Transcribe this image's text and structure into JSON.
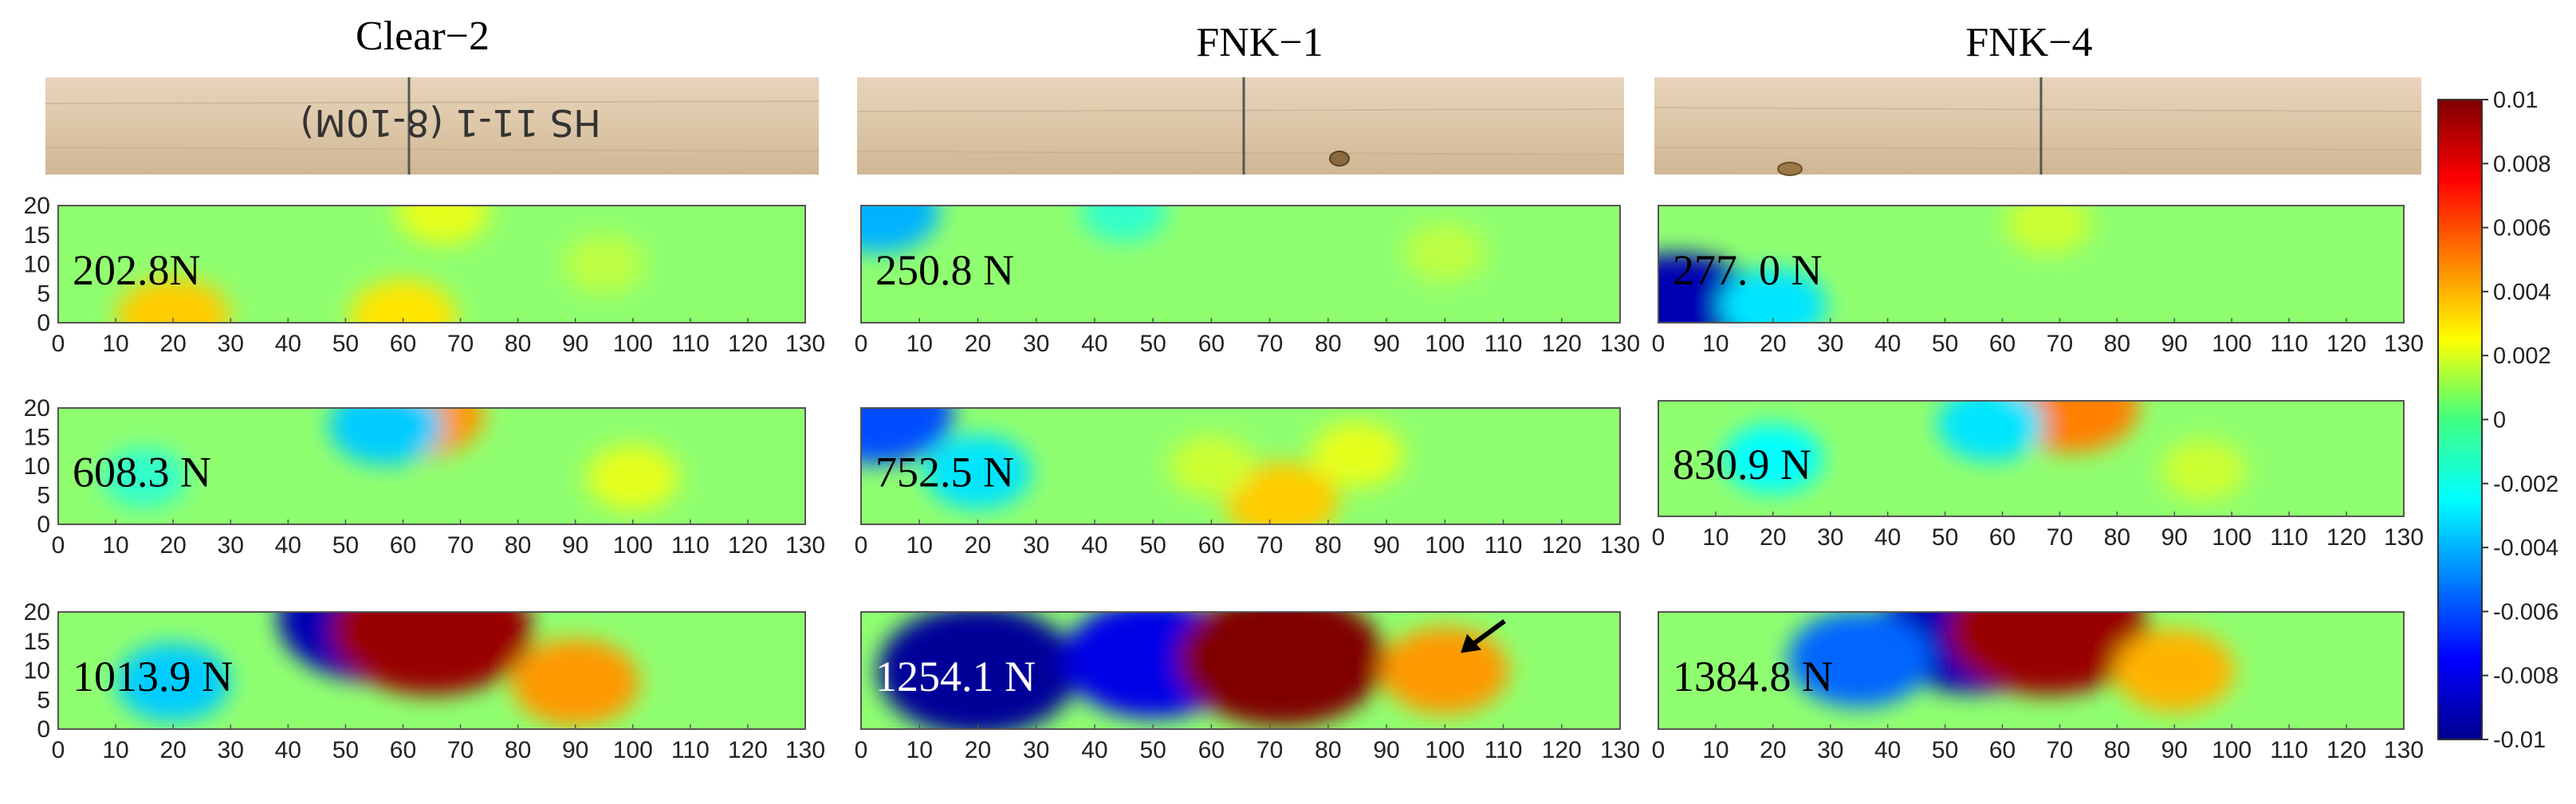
{
  "columns": [
    {
      "title": "Clear−2",
      "specimen_label": "HS 11-1 (8-10M)",
      "knot": false
    },
    {
      "title": "FNK−1",
      "specimen_label": "",
      "knot": true
    },
    {
      "title": "FNK−4",
      "specimen_label": "",
      "knot": true
    }
  ],
  "chart_data": {
    "type": "heatmap",
    "title": "",
    "xlabel": "",
    "ylabel": "",
    "x_ticks": [
      "0",
      "10",
      "20",
      "30",
      "40",
      "50",
      "60",
      "70",
      "80",
      "90",
      "100",
      "110",
      "120",
      "130"
    ],
    "y_ticks": [
      "0",
      "5",
      "10",
      "15",
      "20"
    ],
    "xlim": [
      0,
      130
    ],
    "ylim": [
      0,
      20
    ],
    "colorbar": {
      "min": -0.01,
      "max": 0.01,
      "colormap": "jet",
      "ticks": [
        "0.01",
        "0.008",
        "0.006",
        "0.004",
        "0.002",
        "0",
        "-0.002",
        "-0.004",
        "-0.006",
        "-0.008",
        "-0.01"
      ]
    },
    "panels": [
      {
        "column": "Clear−2",
        "row": 1,
        "load": "202.8N",
        "load_color": "#000000",
        "features": [
          {
            "x": 20,
            "y": 1,
            "v": 0.0035
          },
          {
            "x": 60,
            "y": 1,
            "v": 0.003
          },
          {
            "x": 67,
            "y": 19,
            "v": 0.002
          },
          {
            "x": 95,
            "y": 10,
            "v": 0.0012
          }
        ]
      },
      {
        "column": "FNK−1",
        "row": 1,
        "load": "250.8 N",
        "load_color": "#000000",
        "features": [
          {
            "x": 3,
            "y": 19,
            "v": -0.004
          },
          {
            "x": 45,
            "y": 19,
            "v": -0.0015
          },
          {
            "x": 100,
            "y": 12,
            "v": 0.0012
          }
        ]
      },
      {
        "column": "FNK−4",
        "row": 1,
        "load": "277. 0 N",
        "load_color": "#000000",
        "features": [
          {
            "x": 3,
            "y": 1,
            "v": -0.009
          },
          {
            "x": 20,
            "y": 3,
            "v": -0.003
          },
          {
            "x": 68,
            "y": 17,
            "v": 0.0015
          }
        ]
      },
      {
        "column": "Clear−2",
        "row": 2,
        "load": "608.3 N",
        "load_color": "#000000",
        "features": [
          {
            "x": 63,
            "y": 19,
            "v": 0.0045
          },
          {
            "x": 57,
            "y": 17,
            "v": -0.0035
          },
          {
            "x": 100,
            "y": 8,
            "v": 0.002
          },
          {
            "x": 15,
            "y": 8,
            "v": -0.0015
          }
        ]
      },
      {
        "column": "FNK−1",
        "row": 2,
        "load": "752.5 N",
        "load_color": "#000000",
        "features": [
          {
            "x": 3,
            "y": 19,
            "v": -0.006
          },
          {
            "x": 20,
            "y": 9,
            "v": -0.003
          },
          {
            "x": 72,
            "y": 4,
            "v": 0.0035
          },
          {
            "x": 85,
            "y": 12,
            "v": 0.002
          },
          {
            "x": 60,
            "y": 10,
            "v": 0.0015
          }
        ]
      },
      {
        "column": "FNK−4",
        "row": 2,
        "load": "830.9 N",
        "load_color": "#000000",
        "features": [
          {
            "x": 72,
            "y": 19,
            "v": 0.005
          },
          {
            "x": 58,
            "y": 16,
            "v": -0.003
          },
          {
            "x": 20,
            "y": 10,
            "v": -0.0025
          },
          {
            "x": 95,
            "y": 8,
            "v": 0.0015
          }
        ]
      },
      {
        "column": "Clear−2",
        "row": 3,
        "load": "1013.9 N",
        "load_color": "#000000",
        "features": [
          {
            "x": 55,
            "y": 19,
            "v": -0.009
          },
          {
            "x": 65,
            "y": 17,
            "v": 0.0095
          },
          {
            "x": 90,
            "y": 8,
            "v": 0.0045
          },
          {
            "x": 20,
            "y": 8,
            "v": -0.0035
          }
        ]
      },
      {
        "column": "FNK−1",
        "row": 3,
        "load": "1254.1 N",
        "load_color": "#ffffff",
        "features": [
          {
            "x": 20,
            "y": 10,
            "v": -0.0095
          },
          {
            "x": 50,
            "y": 12,
            "v": -0.008
          },
          {
            "x": 72,
            "y": 12,
            "v": 0.01
          },
          {
            "x": 100,
            "y": 10,
            "v": 0.0045
          }
        ],
        "annotation": "arrow"
      },
      {
        "column": "FNK−4",
        "row": 3,
        "load": "1384.8 N",
        "load_color": "#000000",
        "features": [
          {
            "x": 55,
            "y": 17,
            "v": -0.009
          },
          {
            "x": 68,
            "y": 17,
            "v": 0.0095
          },
          {
            "x": 90,
            "y": 10,
            "v": 0.004
          },
          {
            "x": 35,
            "y": 12,
            "v": -0.0055
          }
        ]
      }
    ]
  }
}
